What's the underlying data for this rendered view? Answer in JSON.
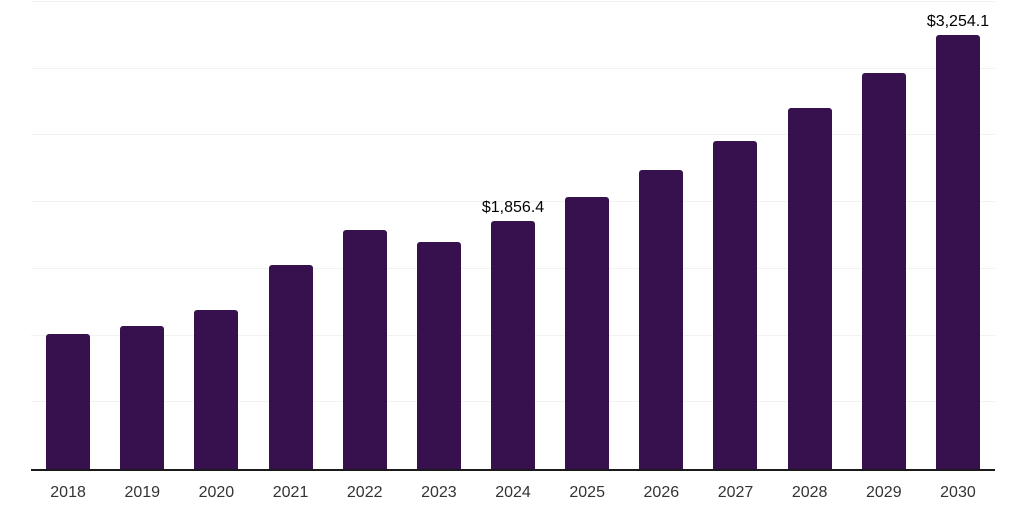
{
  "chart_data": {
    "type": "bar",
    "title": "",
    "xlabel": "",
    "ylabel": "",
    "categories": [
      "2018",
      "2019",
      "2020",
      "2021",
      "2022",
      "2023",
      "2024",
      "2025",
      "2026",
      "2027",
      "2028",
      "2029",
      "2030"
    ],
    "values": [
      1011,
      1072,
      1192,
      1526,
      1791,
      1701,
      1856.4,
      2041,
      2241,
      2460,
      2705,
      2968,
      3254.1
    ],
    "data_labels": {
      "2024": "$1,856.4",
      "2030": "$3,254.1"
    },
    "ylim": [
      0,
      3500
    ],
    "gridline_step": 500,
    "grid": "horizontal-only",
    "legend": "none",
    "y_axis_tick_labels": "none",
    "colors": {
      "bar": "#36114d",
      "gridline": "#f2f2f2",
      "axis_line": "#1a1a1a",
      "tick_label": "#333333",
      "data_label": "#000000",
      "background": "#ffffff"
    }
  }
}
